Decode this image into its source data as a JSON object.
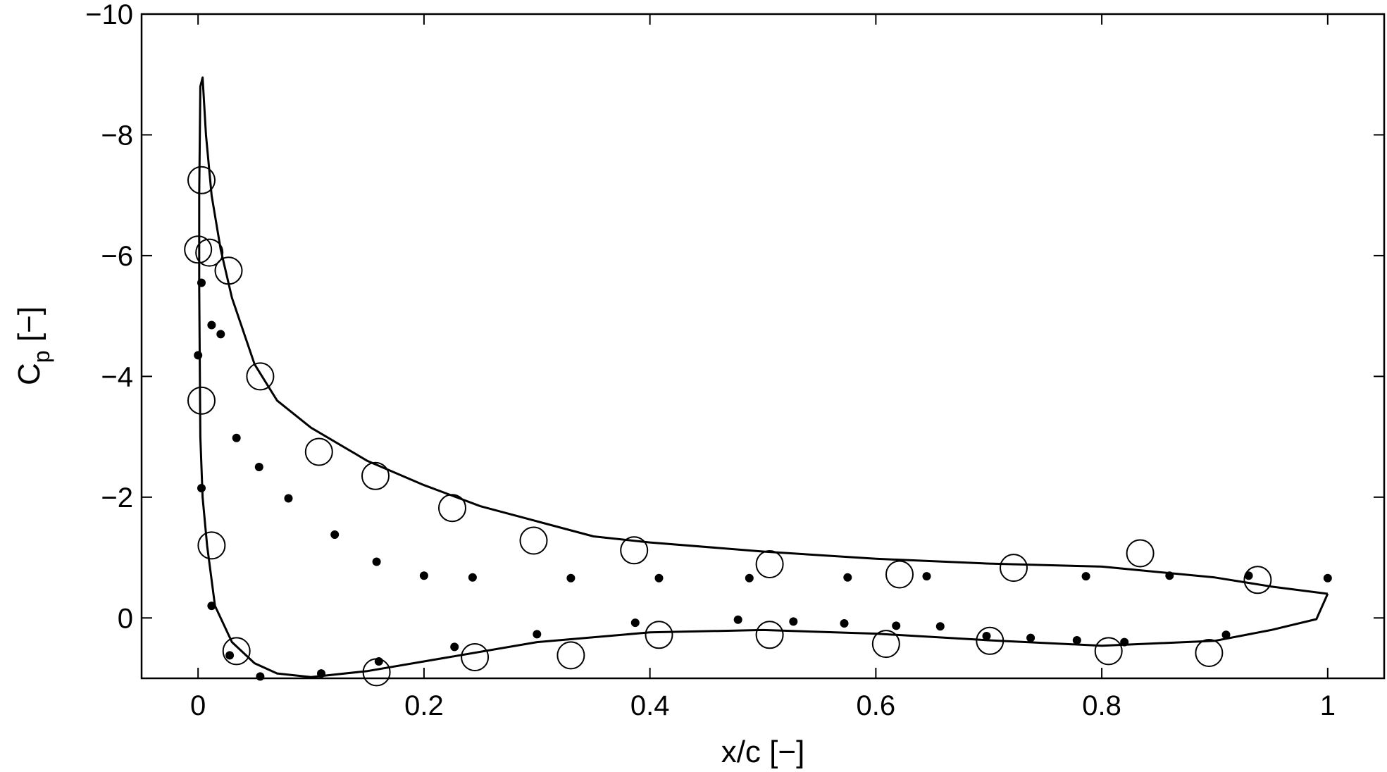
{
  "chart_data": {
    "type": "line",
    "title": "",
    "xlabel": "x/c [−]",
    "ylabel": "C",
    "ylabel_subscript": "p",
    "ylabel_unit": " [−]",
    "xlim": [
      -0.05,
      1.05
    ],
    "ylim": [
      1.0,
      -10.0
    ],
    "y_inverted": true,
    "grid": false,
    "legend": "none",
    "x_ticks": [
      0,
      0.2,
      0.4,
      0.6,
      0.8,
      1
    ],
    "x_tick_labels": [
      "0",
      "0.2",
      "0.4",
      "0.6",
      "0.8",
      "1"
    ],
    "y_ticks": [
      0,
      -2,
      -4,
      -6,
      -8,
      -10
    ],
    "y_tick_labels": [
      "0",
      "−2",
      "−4",
      "−6",
      "−8",
      "−10"
    ],
    "series": [
      {
        "kind": "line",
        "points": [
          [
            1.0,
            -0.4
          ],
          [
            0.95,
            -0.52
          ],
          [
            0.9,
            -0.67
          ],
          [
            0.8,
            -0.85
          ],
          [
            0.7,
            -0.9
          ],
          [
            0.6,
            -0.98
          ],
          [
            0.5,
            -1.1
          ],
          [
            0.4,
            -1.25
          ],
          [
            0.35,
            -1.35
          ],
          [
            0.3,
            -1.6
          ],
          [
            0.25,
            -1.85
          ],
          [
            0.2,
            -2.2
          ],
          [
            0.15,
            -2.6
          ],
          [
            0.1,
            -3.15
          ],
          [
            0.07,
            -3.6
          ],
          [
            0.05,
            -4.2
          ],
          [
            0.03,
            -5.3
          ],
          [
            0.02,
            -6.1
          ],
          [
            0.012,
            -7.0
          ],
          [
            0.007,
            -8.0
          ],
          [
            0.004,
            -8.95
          ],
          [
            0.002,
            -8.8
          ],
          [
            0.001,
            -7.0
          ],
          [
            0.001,
            -5.5
          ],
          [
            0.002,
            -3.0
          ],
          [
            0.004,
            -2.0
          ],
          [
            0.008,
            -1.2
          ],
          [
            0.015,
            -0.2
          ],
          [
            0.03,
            0.4
          ],
          [
            0.05,
            0.75
          ],
          [
            0.07,
            0.92
          ],
          [
            0.1,
            0.98
          ],
          [
            0.15,
            0.88
          ],
          [
            0.2,
            0.72
          ],
          [
            0.3,
            0.4
          ],
          [
            0.4,
            0.24
          ],
          [
            0.5,
            0.2
          ],
          [
            0.6,
            0.26
          ],
          [
            0.7,
            0.37
          ],
          [
            0.8,
            0.46
          ],
          [
            0.9,
            0.38
          ],
          [
            0.95,
            0.2
          ],
          [
            0.99,
            0.02
          ],
          [
            1.0,
            -0.4
          ]
        ]
      },
      {
        "kind": "open-circle",
        "points": [
          [
            0.003,
            -7.25
          ],
          [
            0.0,
            -6.1
          ],
          [
            0.01,
            -6.05
          ],
          [
            0.027,
            -5.75
          ],
          [
            0.055,
            -4.0
          ],
          [
            0.003,
            -3.6
          ],
          [
            0.107,
            -2.75
          ],
          [
            0.157,
            -2.35
          ],
          [
            0.225,
            -1.82
          ],
          [
            0.297,
            -1.28
          ],
          [
            0.386,
            -1.12
          ],
          [
            0.506,
            -0.89
          ],
          [
            0.621,
            -0.72
          ],
          [
            0.722,
            -0.83
          ],
          [
            0.834,
            -1.07
          ],
          [
            0.938,
            -0.63
          ],
          [
            0.012,
            -1.2
          ],
          [
            0.034,
            0.55
          ],
          [
            0.158,
            0.9
          ],
          [
            0.245,
            0.65
          ],
          [
            0.33,
            0.62
          ],
          [
            0.408,
            0.28
          ],
          [
            0.506,
            0.28
          ],
          [
            0.609,
            0.43
          ],
          [
            0.701,
            0.38
          ],
          [
            0.806,
            0.55
          ],
          [
            0.895,
            0.58
          ]
        ]
      },
      {
        "kind": "filled-dot",
        "points": [
          [
            0.003,
            -5.55
          ],
          [
            0.012,
            -4.85
          ],
          [
            0.02,
            -4.7
          ],
          [
            0.0,
            -4.35
          ],
          [
            0.034,
            -2.98
          ],
          [
            0.054,
            -2.5
          ],
          [
            0.08,
            -1.98
          ],
          [
            0.121,
            -1.38
          ],
          [
            0.158,
            -0.93
          ],
          [
            0.2,
            -0.7
          ],
          [
            0.243,
            -0.67
          ],
          [
            0.33,
            -0.66
          ],
          [
            0.408,
            -0.66
          ],
          [
            0.488,
            -0.66
          ],
          [
            0.575,
            -0.67
          ],
          [
            0.645,
            -0.69
          ],
          [
            0.786,
            -0.69
          ],
          [
            0.86,
            -0.7
          ],
          [
            0.93,
            -0.7
          ],
          [
            1.0,
            -0.66
          ],
          [
            0.003,
            -2.15
          ],
          [
            0.012,
            -0.2
          ],
          [
            0.028,
            0.62
          ],
          [
            0.055,
            0.97
          ],
          [
            0.109,
            0.92
          ],
          [
            0.16,
            0.72
          ],
          [
            0.227,
            0.48
          ],
          [
            0.3,
            0.27
          ],
          [
            0.387,
            0.08
          ],
          [
            0.478,
            0.03
          ],
          [
            0.527,
            0.06
          ],
          [
            0.572,
            0.09
          ],
          [
            0.618,
            0.13
          ],
          [
            0.657,
            0.14
          ],
          [
            0.698,
            0.3
          ],
          [
            0.737,
            0.33
          ],
          [
            0.778,
            0.37
          ],
          [
            0.82,
            0.4
          ],
          [
            0.91,
            0.28
          ]
        ]
      }
    ]
  }
}
